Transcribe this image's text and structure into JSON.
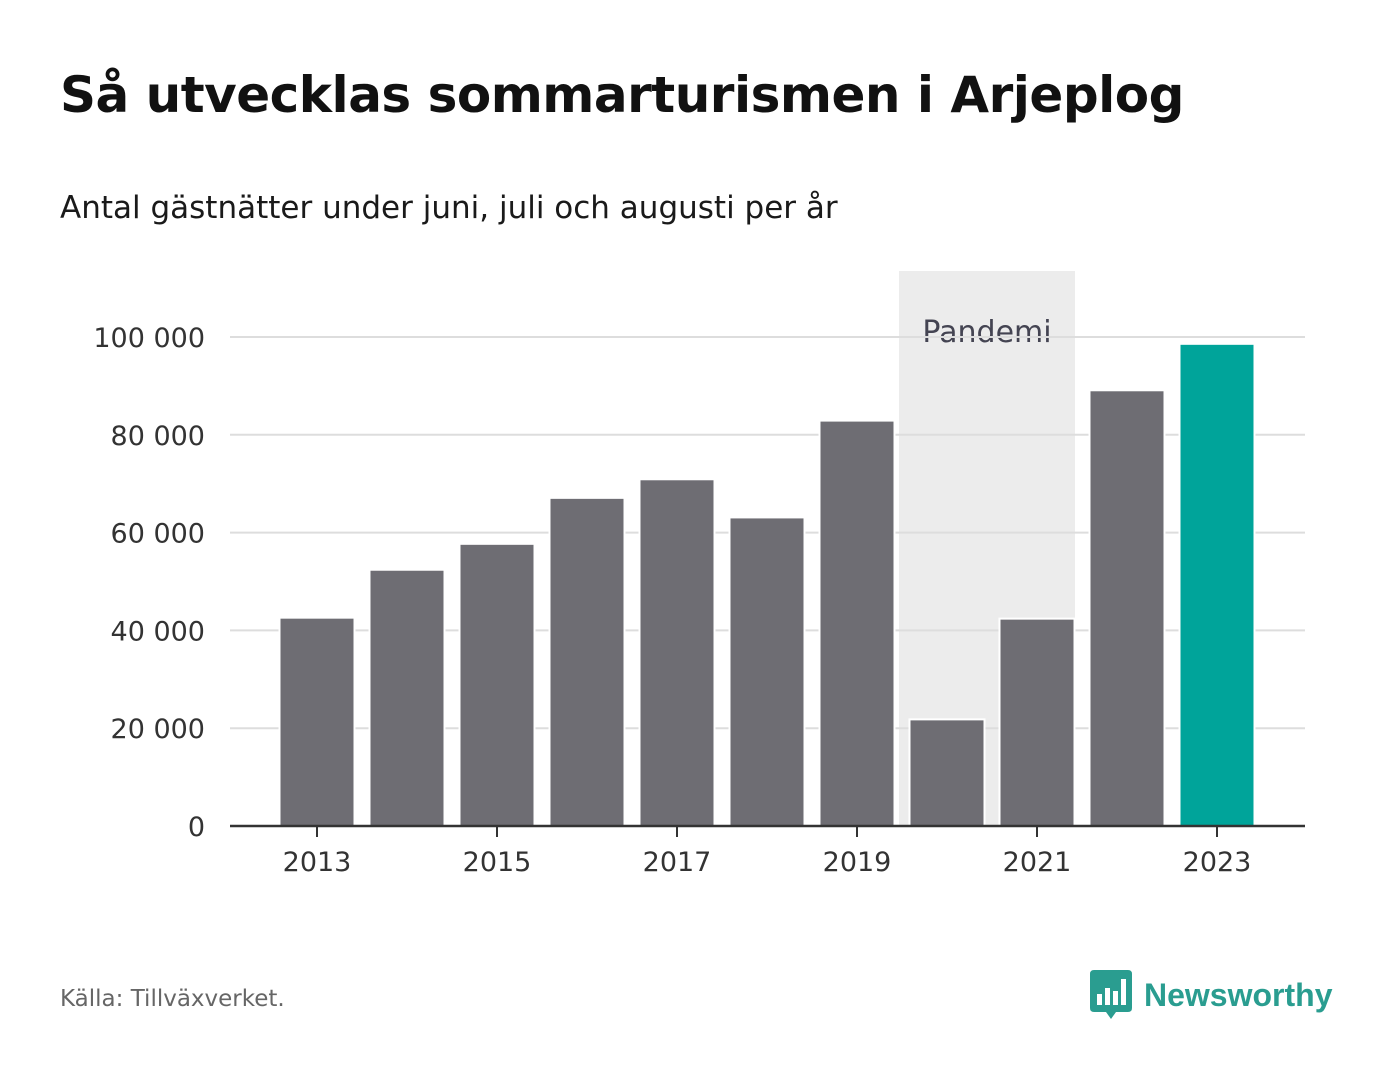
{
  "header": {
    "title": "Så utvecklas sommarturismen i Arjeplog",
    "subtitle": "Antal gästnätter under juni, juli och augusti per år"
  },
  "footer": {
    "source": "Källa: Tillväxverket.",
    "brand": "Newsworthy",
    "brand_icon": "bar-chart-speech-bubble-icon"
  },
  "colors": {
    "bar": "#6e6d73",
    "highlight": "#00a49a",
    "band": "#ececec",
    "grid": "#dddddd",
    "axis": "#333333",
    "brand": "#2a9d90"
  },
  "chart_data": {
    "type": "bar",
    "title": "Så utvecklas sommarturismen i Arjeplog",
    "subtitle": "Antal gästnätter under juni, juli och augusti per år",
    "categories": [
      "2013",
      "2014",
      "2015",
      "2016",
      "2017",
      "2018",
      "2019",
      "2020",
      "2021",
      "2022",
      "2023"
    ],
    "values": [
      42400,
      52200,
      57500,
      66900,
      70700,
      62900,
      82700,
      21600,
      42200,
      88900,
      98400
    ],
    "highlight_category": "2023",
    "x_tick_labels": [
      "2013",
      "2015",
      "2017",
      "2019",
      "2021",
      "2023"
    ],
    "yticks": [
      0,
      20000,
      40000,
      60000,
      80000,
      100000
    ],
    "ytick_labels": [
      "0",
      "20 000",
      "40 000",
      "60 000",
      "80 000",
      "100 000"
    ],
    "ylim": [
      0,
      112000
    ],
    "grid": true,
    "annotation": {
      "label": "Pandemi",
      "from": "2020",
      "to": "2021"
    },
    "xlabel": "",
    "ylabel": ""
  }
}
